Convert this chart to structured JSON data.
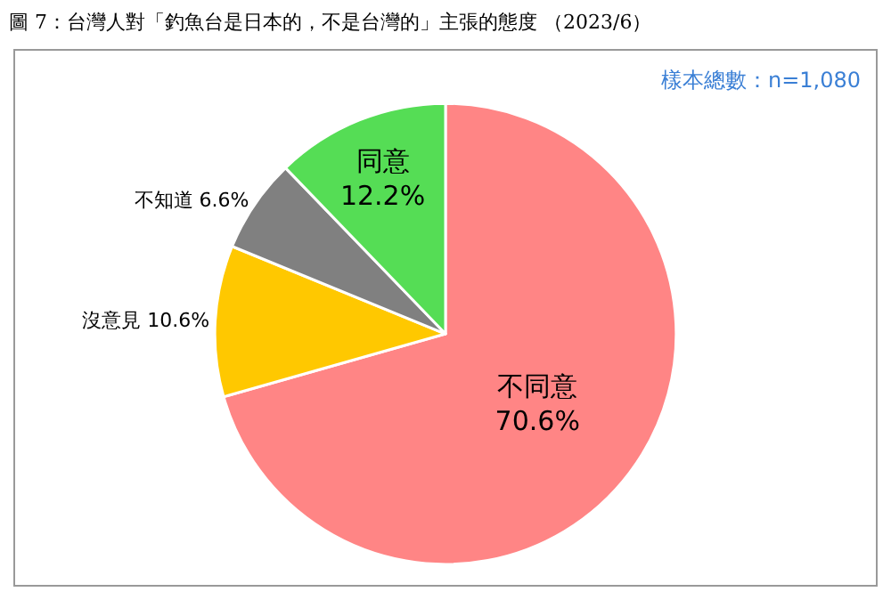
{
  "chart_data": {
    "type": "pie",
    "title": "圖 7：台灣人對「釣魚台是日本的，不是台灣的」主張的態度 （2023/6）",
    "categories": [
      "不同意",
      "沒意見",
      "不知道",
      "同意"
    ],
    "values": [
      70.6,
      10.6,
      6.6,
      12.2
    ],
    "value_labels": [
      "70.6%",
      "10.6%",
      "6.6%",
      "12.2%"
    ],
    "colors": [
      "#ff8585",
      "#ffc800",
      "#808080",
      "#55dd55"
    ],
    "annotations": [
      "樣本總數：n=1,080"
    ],
    "legend": false
  }
}
